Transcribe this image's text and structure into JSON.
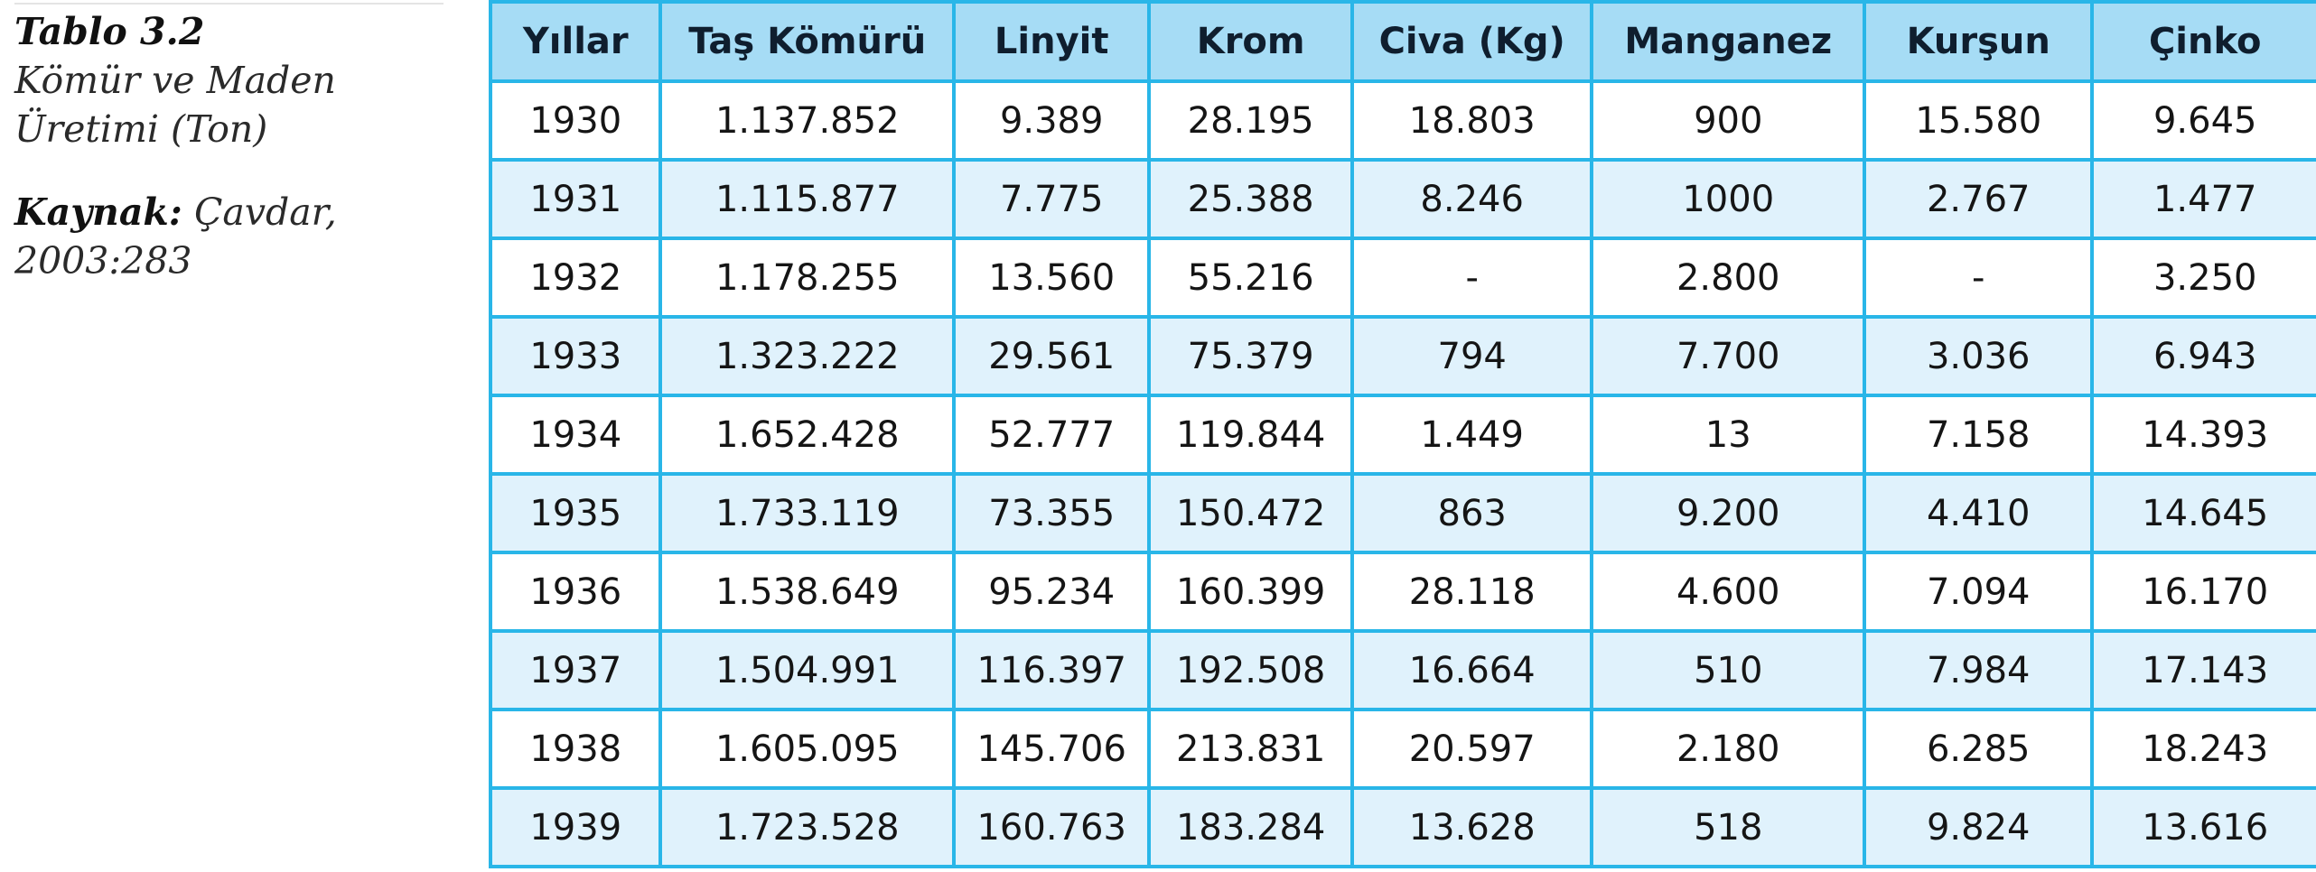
{
  "caption": {
    "table_label": "Tablo 3.2",
    "title_line1": "Kömür ve Maden",
    "title_line2": "Üretimi (Ton)",
    "source_label": "Kaynak:",
    "source_author": "Çavdar,",
    "source_ref": "2003:283"
  },
  "table": {
    "columns": [
      "Yıllar",
      "Taş Kömürü",
      "Linyit",
      "Krom",
      "Civa (Kg)",
      "Manganez",
      "Kurşun",
      "Çinko"
    ],
    "rows": [
      [
        "1930",
        "1.137.852",
        "9.389",
        "28.195",
        "18.803",
        "900",
        "15.580",
        "9.645"
      ],
      [
        "1931",
        "1.115.877",
        "7.775",
        "25.388",
        "8.246",
        "1000",
        "2.767",
        "1.477"
      ],
      [
        "1932",
        "1.178.255",
        "13.560",
        "55.216",
        "-",
        "2.800",
        "-",
        "3.250"
      ],
      [
        "1933",
        "1.323.222",
        "29.561",
        "75.379",
        "794",
        "7.700",
        "3.036",
        "6.943"
      ],
      [
        "1934",
        "1.652.428",
        "52.777",
        "119.844",
        "1.449",
        "13",
        "7.158",
        "14.393"
      ],
      [
        "1935",
        "1.733.119",
        "73.355",
        "150.472",
        "863",
        "9.200",
        "4.410",
        "14.645"
      ],
      [
        "1936",
        "1.538.649",
        "95.234",
        "160.399",
        "28.118",
        "4.600",
        "7.094",
        "16.170"
      ],
      [
        "1937",
        "1.504.991",
        "116.397",
        "192.508",
        "16.664",
        "510",
        "7.984",
        "17.143"
      ],
      [
        "1938",
        "1.605.095",
        "145.706",
        "213.831",
        "20.597",
        "2.180",
        "6.285",
        "18.243"
      ],
      [
        "1939",
        "1.723.528",
        "160.763",
        "183.284",
        "13.628",
        "518",
        "9.824",
        "13.616"
      ]
    ]
  },
  "colors": {
    "border": "#29b6e8",
    "header_bg": "#a6dcf5",
    "stripe_bg": "#e0f2fc",
    "row_bg": "#ffffff"
  }
}
